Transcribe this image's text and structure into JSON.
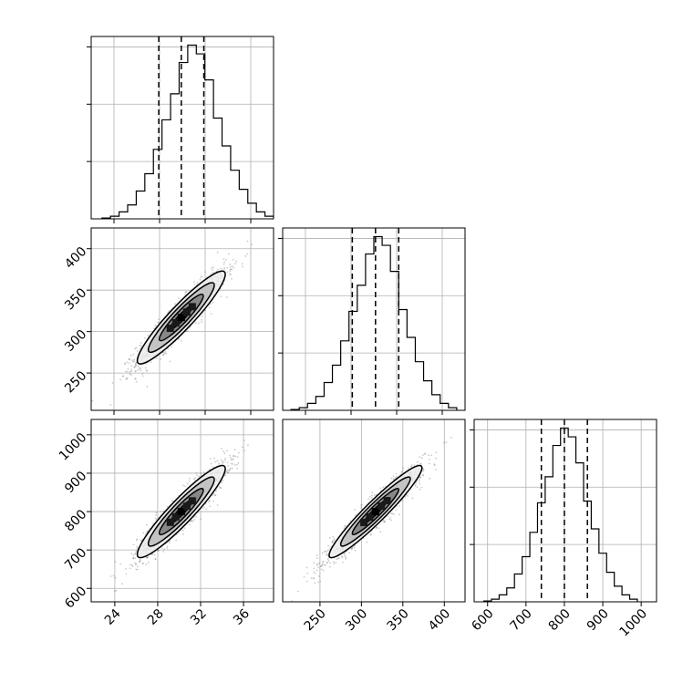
{
  "chart_data": [
    {
      "type": "histogram",
      "panel": "diag-0",
      "variable": 0,
      "xlim": [
        21.8,
        38.8
      ],
      "ylim": [
        0,
        1.05
      ],
      "bin_edges": [
        22.8,
        23.6,
        24.4,
        25.2,
        26.0,
        26.8,
        27.6,
        28.4,
        29.2,
        30.0,
        30.8,
        31.6,
        32.4,
        33.2,
        34.0,
        34.8,
        35.6,
        36.4,
        37.2,
        38.0
      ],
      "counts": [
        0.005,
        0.015,
        0.04,
        0.08,
        0.16,
        0.26,
        0.4,
        0.57,
        0.72,
        0.9,
        1.0,
        0.95,
        0.8,
        0.58,
        0.42,
        0.28,
        0.17,
        0.09,
        0.04,
        0.015
      ],
      "quantiles": [
        28.1,
        30.2,
        32.3
      ],
      "yticks": 3
    },
    {
      "type": "scatter",
      "panel": "lower-1-0",
      "xlim": [
        21.8,
        38.8
      ],
      "ylim": [
        205,
        425
      ],
      "yticks": [
        250,
        300,
        350,
        400
      ],
      "ytick_labels": [
        "250",
        "300",
        "350",
        "400"
      ],
      "mean": [
        30.2,
        317
      ],
      "std": [
        2.05,
        28
      ],
      "rho": 0.93,
      "contour_sigmas": [
        0.5,
        1.0,
        1.5,
        2.0
      ]
    },
    {
      "type": "histogram",
      "panel": "diag-1",
      "variable": 1,
      "xlim": [
        205,
        425
      ],
      "ylim": [
        0,
        1.05
      ],
      "bin_edges": [
        215,
        225,
        235,
        245,
        255,
        265,
        275,
        285,
        295,
        305,
        315,
        325,
        335,
        345,
        355,
        365,
        375,
        385,
        395,
        405
      ],
      "counts": [
        0.005,
        0.015,
        0.04,
        0.08,
        0.16,
        0.26,
        0.4,
        0.57,
        0.72,
        0.9,
        1.0,
        0.95,
        0.8,
        0.58,
        0.42,
        0.28,
        0.17,
        0.09,
        0.04,
        0.015
      ],
      "quantiles": [
        289,
        317,
        345
      ],
      "yticks": 3
    },
    {
      "type": "scatter",
      "panel": "lower-2-0",
      "xlim": [
        21.8,
        38.8
      ],
      "ylim": [
        565,
        1040
      ],
      "xticks": [
        24,
        28,
        32,
        36
      ],
      "xtick_labels": [
        "24",
        "28",
        "32",
        "36"
      ],
      "yticks": [
        600,
        700,
        800,
        900,
        1000
      ],
      "ytick_labels": [
        "600",
        "700",
        "800",
        "900",
        "1000"
      ],
      "mean": [
        30.2,
        800
      ],
      "std": [
        2.05,
        60
      ],
      "rho": 0.93,
      "contour_sigmas": [
        0.5,
        1.0,
        1.5,
        2.0
      ]
    },
    {
      "type": "scatter",
      "panel": "lower-2-1",
      "xlim": [
        205,
        425
      ],
      "ylim": [
        565,
        1040
      ],
      "xticks": [
        250,
        300,
        350,
        400
      ],
      "xtick_labels": [
        "250",
        "300",
        "350",
        "400"
      ],
      "mean": [
        317,
        800
      ],
      "std": [
        28,
        60
      ],
      "rho": 0.95,
      "contour_sigmas": [
        0.5,
        1.0,
        1.5,
        2.0
      ]
    },
    {
      "type": "histogram",
      "panel": "diag-2",
      "variable": 2,
      "xlim": [
        565,
        1040
      ],
      "ylim": [
        0,
        1.05
      ],
      "bin_edges": [
        590,
        610,
        630,
        650,
        670,
        690,
        710,
        730,
        750,
        770,
        790,
        810,
        830,
        850,
        870,
        890,
        910,
        930,
        950,
        970
      ],
      "counts": [
        0.005,
        0.015,
        0.04,
        0.08,
        0.16,
        0.26,
        0.4,
        0.57,
        0.72,
        0.9,
        1.0,
        0.95,
        0.8,
        0.58,
        0.42,
        0.28,
        0.17,
        0.09,
        0.04,
        0.015
      ],
      "quantiles": [
        740,
        800,
        860
      ],
      "xticks": [
        600,
        700,
        800,
        900,
        1000
      ],
      "xtick_labels": [
        "600",
        "700",
        "800",
        "900",
        "1000"
      ],
      "yticks": 3
    }
  ],
  "style": {
    "line_color": "#000000",
    "grid_color": "#b0b0b0",
    "point_color": "#555555",
    "fill_levels": [
      "#ededed",
      "#bdbdbd",
      "#7d7d7d",
      "#383838"
    ]
  }
}
